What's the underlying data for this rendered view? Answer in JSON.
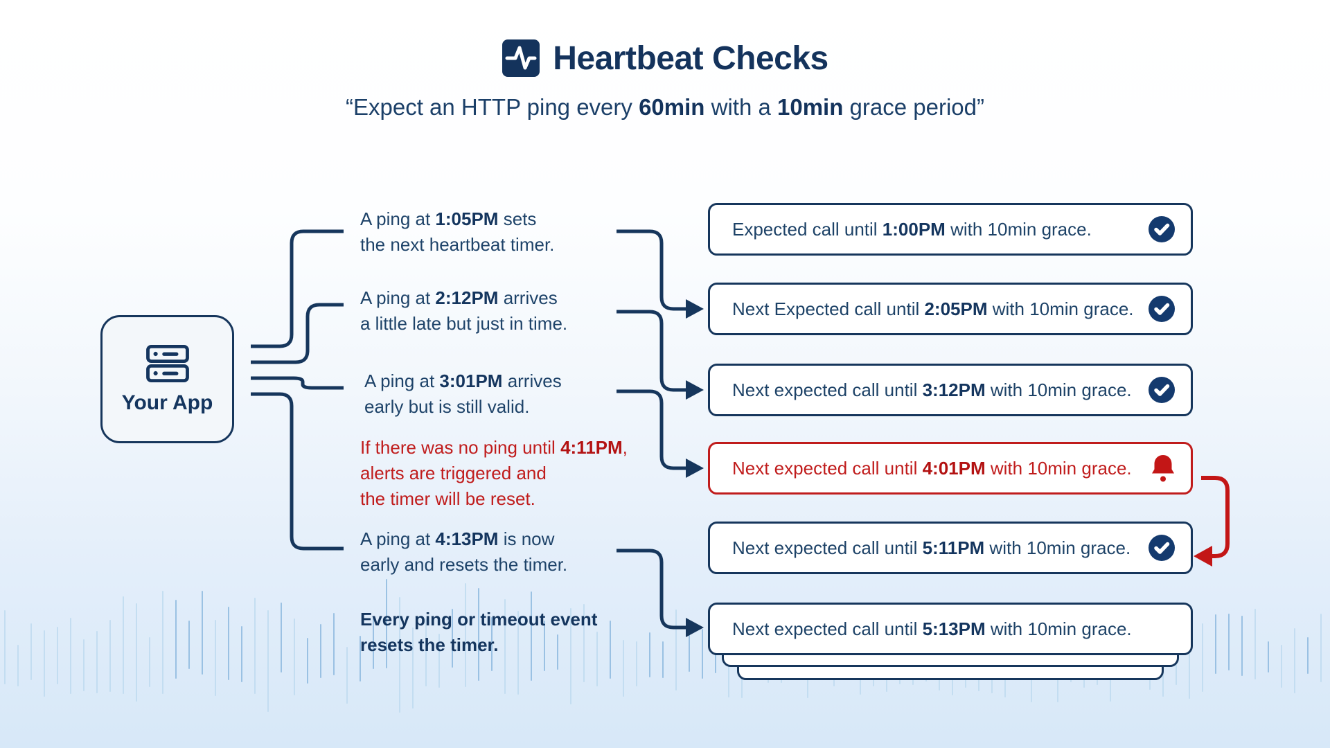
{
  "header": {
    "icon": "activity-pulse-icon",
    "title": "Heartbeat Checks",
    "subtitle": {
      "pre": "“Expect an HTTP ping every ",
      "bold1": "60min",
      "mid": " with a ",
      "bold2": "10min",
      "post": " grace period”"
    }
  },
  "app_node": {
    "icon": "server-icon",
    "label": "Your App"
  },
  "events": [
    {
      "line1_pre": "A ping at ",
      "line1_bold": "1:05PM",
      "line1_post": " sets",
      "line2": "the next heartbeat timer.",
      "tone": "navy"
    },
    {
      "line1_pre": "A ping at ",
      "line1_bold": "2:12PM",
      "line1_post": " arrives",
      "line2": "a little late but just in time.",
      "tone": "navy"
    },
    {
      "line1_pre": "A ping at ",
      "line1_bold": "3:01PM",
      "line1_post": " arrives",
      "line2": "early but is still valid.",
      "tone": "navy"
    },
    {
      "line1_pre": "If there was no ping until ",
      "line1_bold": "4:11PM",
      "line1_post": ",",
      "line2": "alerts are triggered and",
      "line3": "the timer will be reset.",
      "tone": "red"
    },
    {
      "line1_pre": "A ping at ",
      "line1_bold": "4:13PM",
      "line1_post": " is now",
      "line2": "early and resets the timer.",
      "tone": "navy"
    },
    {
      "line1": "Every ping or timeout event",
      "line2": "resets the timer.",
      "tone": "navy-bold"
    }
  ],
  "checks": [
    {
      "pre": "Expected call until ",
      "time": "1:00PM",
      "post": " with 10min grace.",
      "icon": "check-badge",
      "state": "ok"
    },
    {
      "pre": "Next Expected call until ",
      "time": "2:05PM",
      "post": " with 10min grace.",
      "icon": "check-badge",
      "state": "ok"
    },
    {
      "pre": "Next expected call until ",
      "time": "3:12PM",
      "post": " with 10min grace.",
      "icon": "check-badge",
      "state": "ok"
    },
    {
      "pre": "Next expected call until ",
      "time": "4:01PM",
      "post": " with 10min grace.",
      "icon": "alert-bell",
      "state": "alert"
    },
    {
      "pre": "Next expected call until ",
      "time": "5:11PM",
      "post": " with 10min grace.",
      "icon": "check-badge",
      "state": "ok"
    },
    {
      "pre": "Next expected call until ",
      "time": "5:13PM",
      "post": " with 10min grace.",
      "icon": "none",
      "state": "pending"
    }
  ],
  "colors": {
    "navy": "#16365c",
    "navy_text": "#1d4267",
    "red": "#c01c1c",
    "badge_fill": "#143a6e",
    "wave_line_light": "#bdd9ef",
    "wave_line_dark": "#8ab7dd",
    "background_bottom": "#d7e8f8"
  }
}
